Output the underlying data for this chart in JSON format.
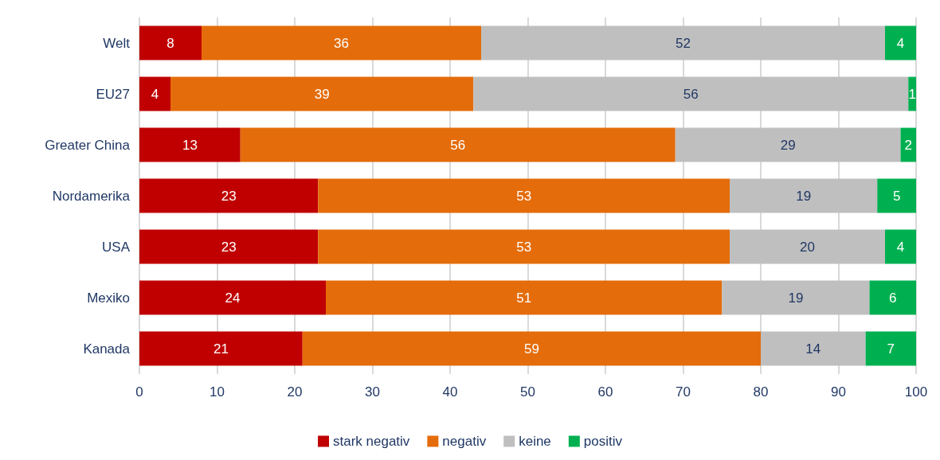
{
  "chart_data": {
    "type": "bar",
    "orientation": "horizontal",
    "stacked": true,
    "categories": [
      "Welt",
      "EU27",
      "Greater China",
      "Nordamerika",
      "USA",
      "Mexiko",
      "Kanada"
    ],
    "series": [
      {
        "name": "stark negativ",
        "color": "#c00000",
        "values": [
          8,
          4,
          13,
          23,
          23,
          24,
          21
        ],
        "value_labels": [
          "8",
          "4",
          "13",
          "23",
          "23",
          "24",
          "21"
        ]
      },
      {
        "name": "negativ",
        "color": "#e46c0a",
        "values": [
          36,
          39,
          56,
          53,
          53,
          51,
          59
        ],
        "value_labels": [
          "36",
          "39",
          "56",
          "53",
          "53",
          "51",
          "59"
        ]
      },
      {
        "name": "keine",
        "color": "#bfbfbf",
        "values": [
          52,
          56,
          29,
          19,
          20,
          19,
          13.5
        ],
        "value_labels": [
          "52",
          "56",
          "29",
          "19",
          "20",
          "19",
          "14"
        ]
      },
      {
        "name": "positiv",
        "color": "#00b050",
        "values": [
          4,
          1,
          2,
          5,
          4,
          6,
          6.5
        ],
        "value_labels": [
          "4",
          "1",
          "2",
          "5",
          "4",
          "6",
          "7"
        ]
      }
    ],
    "xlim": [
      0,
      100
    ],
    "xticks": [
      0,
      10,
      20,
      30,
      40,
      50,
      60,
      70,
      80,
      90,
      100
    ],
    "grid": "x",
    "legend": "bottom"
  }
}
